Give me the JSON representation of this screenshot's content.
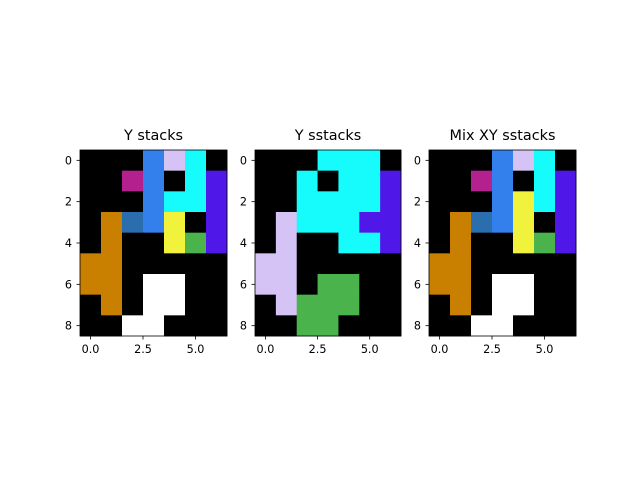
{
  "chart_data": [
    {
      "type": "heatmap",
      "title": "Y stacks",
      "xlim": [
        -0.5,
        6.5
      ],
      "ylim": [
        8.5,
        -0.5
      ],
      "xticks": [
        0,
        2.5,
        5
      ],
      "xtick_labels": [
        "0.0",
        "2.5",
        "5.0"
      ],
      "yticks": [
        0,
        2,
        4,
        6,
        8
      ],
      "ytick_labels": [
        "0",
        "2",
        "4",
        "6",
        "8"
      ],
      "grid": false,
      "colors": {
        "k": "#000000",
        "m": "#b5208f",
        "b": "#3380ec",
        "l": "#d5c3f5",
        "c": "#16fcfc",
        "v": "#5018e8",
        "s": "#2a6ead",
        "y": "#f0f23c",
        "g": "#4bb34b",
        "o": "#c98000",
        "w": "#ffffff"
      },
      "cells": [
        "kkkblck",
        "kkmbkcv",
        "kkkbccv",
        "kosbykv",
        "kokkygv",
        "ookkkkk",
        "ookwwkk",
        "kokwwkk",
        "kkwwkkk"
      ]
    },
    {
      "type": "heatmap",
      "title": "Y sstacks",
      "xlim": [
        -0.5,
        6.5
      ],
      "ylim": [
        8.5,
        -0.5
      ],
      "xticks": [
        0,
        2.5,
        5
      ],
      "xtick_labels": [
        "0.0",
        "2.5",
        "5.0"
      ],
      "yticks": [
        0,
        2,
        4,
        6,
        8
      ],
      "ytick_labels": [
        "0",
        "2",
        "4",
        "6",
        "8"
      ],
      "grid": false,
      "colors": {
        "k": "#000000",
        "m": "#b5208f",
        "b": "#3380ec",
        "l": "#d5c3f5",
        "c": "#16fcfc",
        "v": "#5018e8",
        "s": "#2a6ead",
        "y": "#f0f23c",
        "g": "#4bb34b",
        "o": "#c98000",
        "w": "#ffffff"
      },
      "cells": [
        "kkkccck",
        "kkckccv",
        "kkccccv",
        "klcccvv",
        "klkkccv",
        "llkkkkk",
        "llkggkk",
        "klgggkk",
        "kkggkkk"
      ]
    },
    {
      "type": "heatmap",
      "title": "Mix XY sstacks",
      "xlim": [
        -0.5,
        6.5
      ],
      "ylim": [
        8.5,
        -0.5
      ],
      "xticks": [
        0,
        2.5,
        5
      ],
      "xtick_labels": [
        "0.0",
        "2.5",
        "5.0"
      ],
      "yticks": [
        0,
        2,
        4,
        6,
        8
      ],
      "ytick_labels": [
        "0",
        "2",
        "4",
        "6",
        "8"
      ],
      "grid": false,
      "colors": {
        "k": "#000000",
        "m": "#b5208f",
        "b": "#3380ec",
        "l": "#d5c3f5",
        "c": "#16fcfc",
        "v": "#5018e8",
        "s": "#2a6ead",
        "y": "#f0f23c",
        "g": "#4bb34b",
        "o": "#c98000",
        "w": "#ffffff"
      },
      "cells": [
        "kkkblck",
        "kkmbkcv",
        "kkkbycv",
        "kosbykv",
        "kokkygv",
        "ookkkkk",
        "ookwwkk",
        "kokwwkk",
        "kkwwkkk"
      ]
    }
  ]
}
